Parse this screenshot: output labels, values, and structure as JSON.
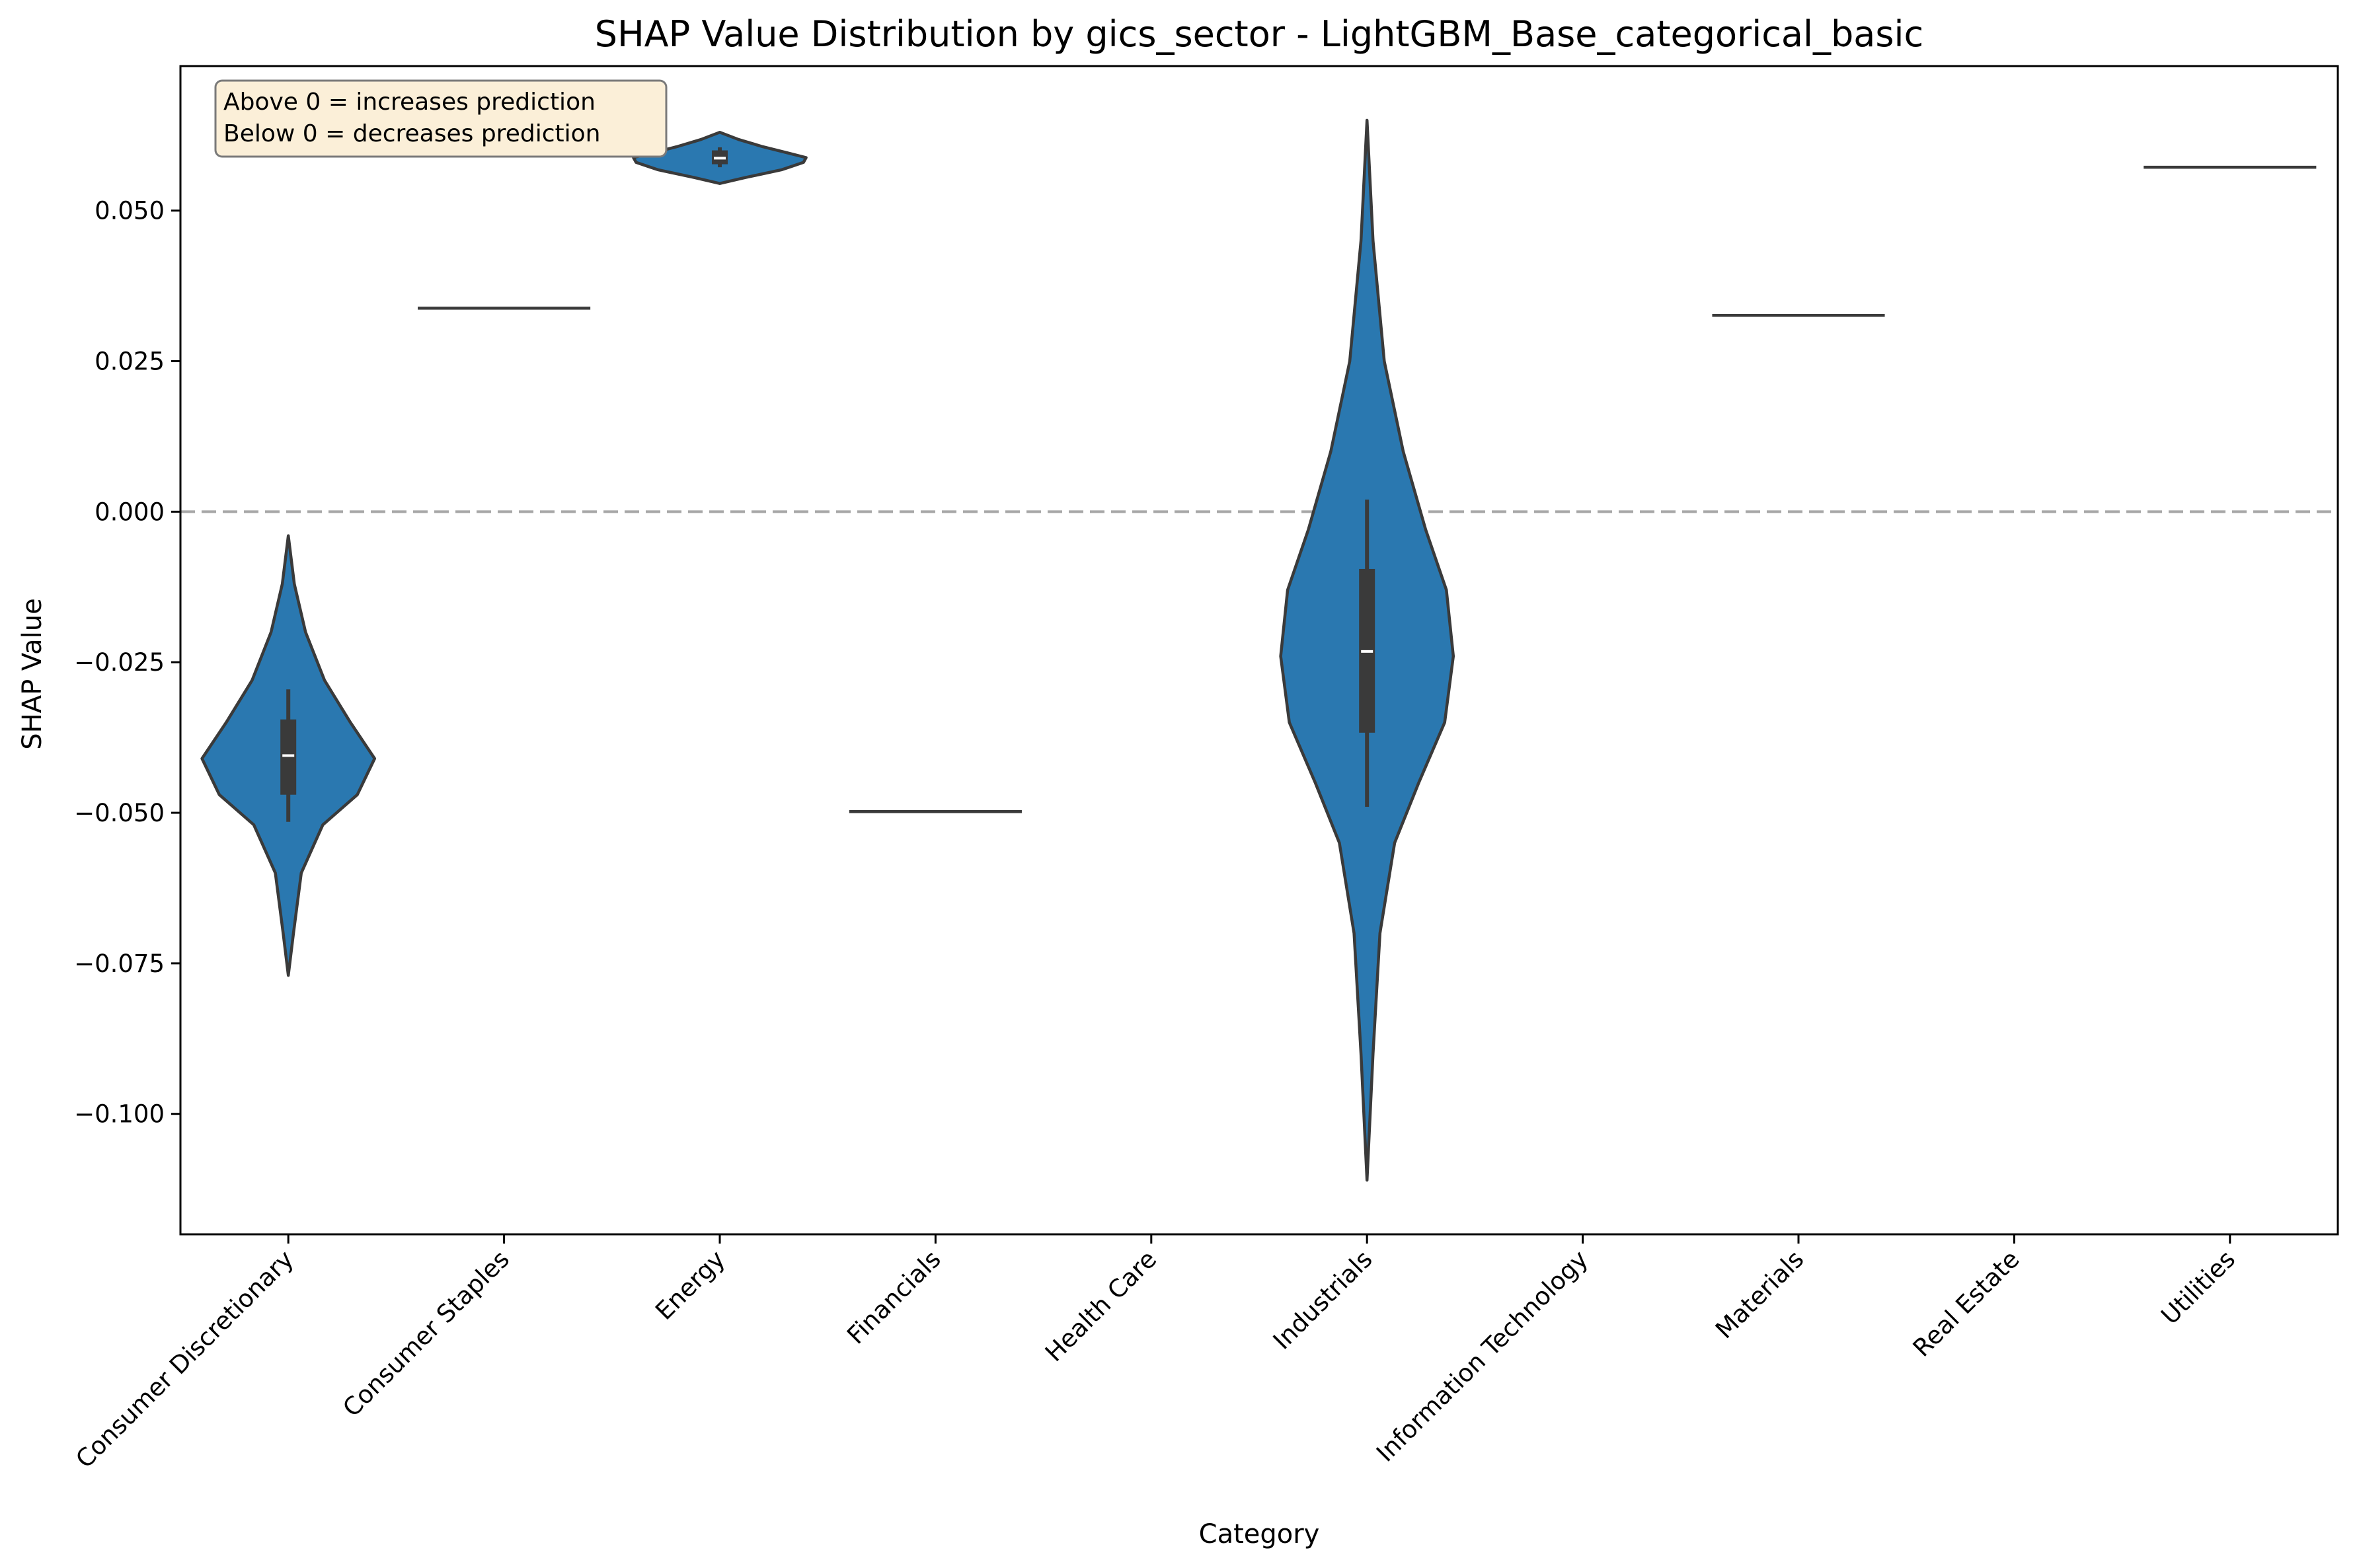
{
  "chart_data": {
    "type": "violin",
    "title": "SHAP Value Distribution by gics_sector - LightGBM_Base_categorical_basic",
    "xlabel": "Category",
    "ylabel": "SHAP Value",
    "ylim": [
      -0.12,
      0.074
    ],
    "yticks": [
      0.05,
      0.025,
      0.0,
      -0.025,
      -0.05,
      -0.075,
      -0.1
    ],
    "ytick_labels": [
      "0.050",
      "0.025",
      "0.000",
      "−0.025",
      "−0.050",
      "−0.075",
      "−0.100"
    ],
    "reference_line": {
      "y": 0.0,
      "style": "dashed",
      "color": "#a8a8a8"
    },
    "grid": false,
    "annotation": {
      "position": "top-left",
      "lines": [
        "Above 0 = increases prediction",
        "Below 0 = decreases prediction"
      ]
    },
    "colors": {
      "violin_fill": "#2a78b0",
      "outline": "#3a3a3a",
      "annotation_bg": "#fbefd8"
    },
    "categories": [
      "Consumer Discretionary",
      "Consumer Staples",
      "Energy",
      "Financials",
      "Health Care",
      "Industrials",
      "Information Technology",
      "Materials",
      "Real Estate",
      "Utilities"
    ],
    "distributions": [
      {
        "category": "Consumer Discretionary",
        "kind": "violin",
        "min": -0.077,
        "max": -0.004,
        "q1": -0.047,
        "median": -0.0405,
        "q3": -0.0345,
        "whisker_low": -0.0515,
        "whisker_high": -0.0295,
        "density": [
          [
            -0.077,
            0.0
          ],
          [
            -0.07,
            0.06
          ],
          [
            -0.06,
            0.15
          ],
          [
            -0.052,
            0.4
          ],
          [
            -0.047,
            0.8
          ],
          [
            -0.041,
            1.0
          ],
          [
            -0.035,
            0.72
          ],
          [
            -0.028,
            0.42
          ],
          [
            -0.02,
            0.2
          ],
          [
            -0.012,
            0.07
          ],
          [
            -0.004,
            0.0
          ]
        ]
      },
      {
        "category": "Consumer Staples",
        "kind": "line",
        "value": 0.0338
      },
      {
        "category": "Energy",
        "kind": "violin",
        "min": 0.0545,
        "max": 0.063,
        "q1": 0.0577,
        "median": 0.0587,
        "q3": 0.06,
        "whisker_low": 0.0572,
        "whisker_high": 0.0605,
        "density": [
          [
            0.0545,
            0.0
          ],
          [
            0.0555,
            0.3
          ],
          [
            0.0568,
            0.72
          ],
          [
            0.058,
            0.97
          ],
          [
            0.0588,
            1.0
          ],
          [
            0.0596,
            0.78
          ],
          [
            0.0606,
            0.5
          ],
          [
            0.0618,
            0.22
          ],
          [
            0.063,
            0.0
          ]
        ]
      },
      {
        "category": "Financials",
        "kind": "line",
        "value": -0.0498
      },
      {
        "category": "Health Care",
        "kind": "none"
      },
      {
        "category": "Industrials",
        "kind": "violin",
        "min": -0.111,
        "max": 0.065,
        "q1": -0.0367,
        "median": -0.0232,
        "q3": -0.0095,
        "whisker_low": -0.049,
        "whisker_high": 0.002,
        "density": [
          [
            -0.111,
            0.0
          ],
          [
            -0.09,
            0.07
          ],
          [
            -0.07,
            0.15
          ],
          [
            -0.055,
            0.32
          ],
          [
            -0.045,
            0.6
          ],
          [
            -0.035,
            0.9
          ],
          [
            -0.024,
            1.0
          ],
          [
            -0.013,
            0.92
          ],
          [
            -0.003,
            0.68
          ],
          [
            0.01,
            0.42
          ],
          [
            0.025,
            0.2
          ],
          [
            0.045,
            0.07
          ],
          [
            0.065,
            0.0
          ]
        ]
      },
      {
        "category": "Information Technology",
        "kind": "none"
      },
      {
        "category": "Materials",
        "kind": "line",
        "value": 0.0326
      },
      {
        "category": "Real Estate",
        "kind": "none"
      },
      {
        "category": "Utilities",
        "kind": "line",
        "value": 0.0572
      }
    ]
  }
}
